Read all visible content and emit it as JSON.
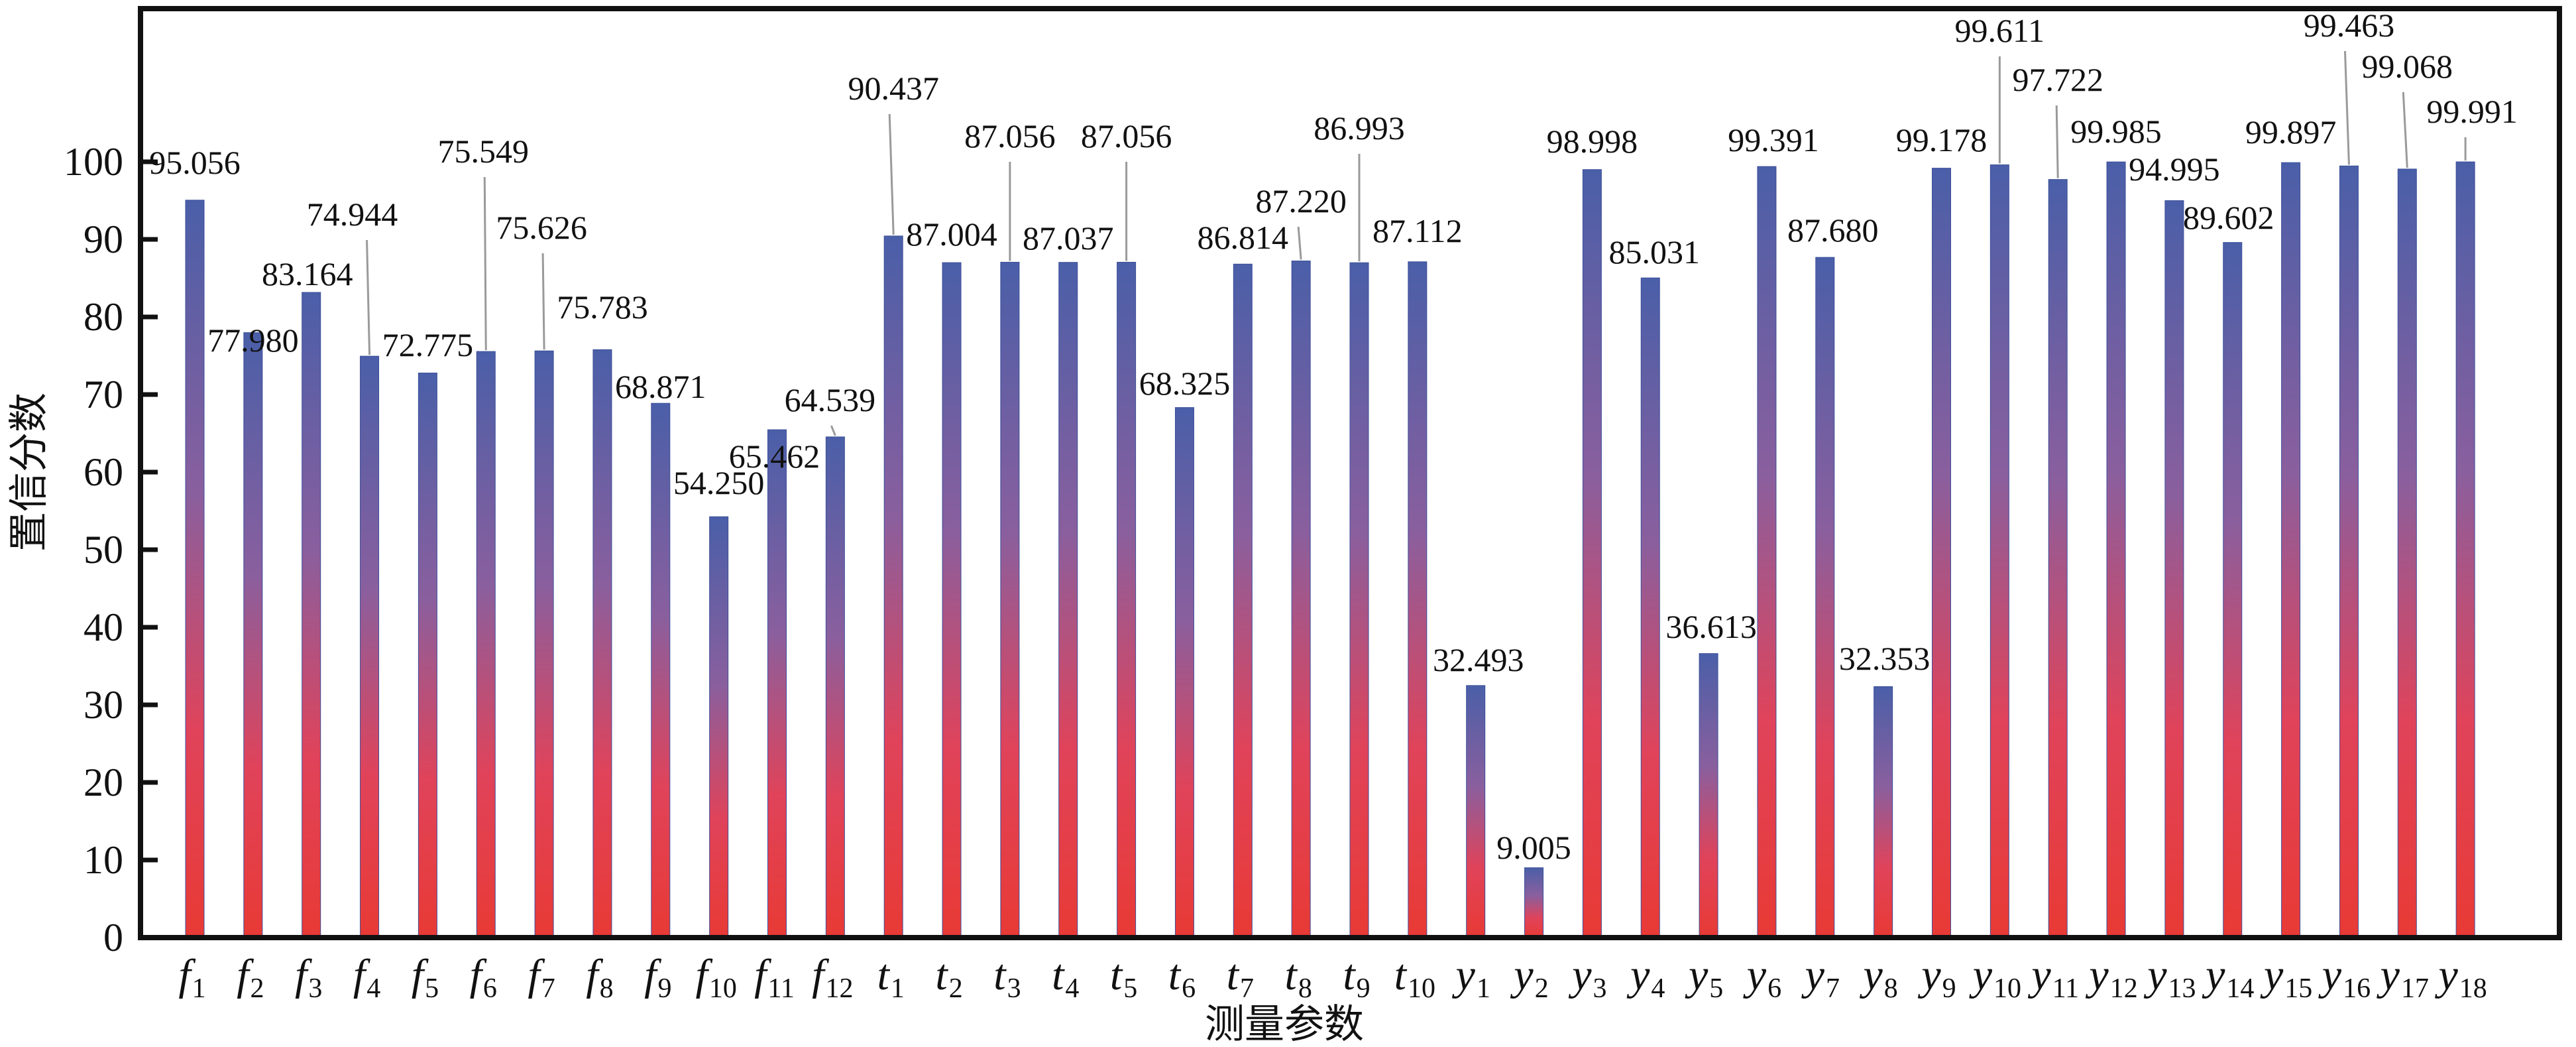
{
  "chart_data": {
    "type": "bar",
    "title": "",
    "xlabel": "测量参数",
    "ylabel": "置信分数",
    "ylim": [
      0,
      100
    ],
    "yticks": [
      0,
      10,
      20,
      30,
      40,
      50,
      60,
      70,
      80,
      90,
      100
    ],
    "grid": false,
    "legend": "none",
    "categories": [
      {
        "base": "f",
        "sub": "1"
      },
      {
        "base": "f",
        "sub": "2"
      },
      {
        "base": "f",
        "sub": "3"
      },
      {
        "base": "f",
        "sub": "4"
      },
      {
        "base": "f",
        "sub": "5"
      },
      {
        "base": "f",
        "sub": "6"
      },
      {
        "base": "f",
        "sub": "7"
      },
      {
        "base": "f",
        "sub": "8"
      },
      {
        "base": "f",
        "sub": "9"
      },
      {
        "base": "f",
        "sub": "10"
      },
      {
        "base": "f",
        "sub": "11"
      },
      {
        "base": "f",
        "sub": "12"
      },
      {
        "base": "t",
        "sub": "1"
      },
      {
        "base": "t",
        "sub": "2"
      },
      {
        "base": "t",
        "sub": "3"
      },
      {
        "base": "t",
        "sub": "4"
      },
      {
        "base": "t",
        "sub": "5"
      },
      {
        "base": "t",
        "sub": "6"
      },
      {
        "base": "t",
        "sub": "7"
      },
      {
        "base": "t",
        "sub": "8"
      },
      {
        "base": "t",
        "sub": "9"
      },
      {
        "base": "t",
        "sub": "10"
      },
      {
        "base": "y",
        "sub": "1"
      },
      {
        "base": "y",
        "sub": "2"
      },
      {
        "base": "y",
        "sub": "3"
      },
      {
        "base": "y",
        "sub": "4"
      },
      {
        "base": "y",
        "sub": "5"
      },
      {
        "base": "y",
        "sub": "6"
      },
      {
        "base": "y",
        "sub": "7"
      },
      {
        "base": "y",
        "sub": "8"
      },
      {
        "base": "y",
        "sub": "9"
      },
      {
        "base": "y",
        "sub": "10"
      },
      {
        "base": "y",
        "sub": "11"
      },
      {
        "base": "y",
        "sub": "12"
      },
      {
        "base": "y",
        "sub": "13"
      },
      {
        "base": "y",
        "sub": "14"
      },
      {
        "base": "y",
        "sub": "15"
      },
      {
        "base": "y",
        "sub": "16"
      },
      {
        "base": "y",
        "sub": "17"
      },
      {
        "base": "y",
        "sub": "18"
      }
    ],
    "values": [
      95.056,
      77.98,
      83.164,
      74.944,
      72.775,
      75.549,
      75.626,
      75.783,
      68.871,
      54.25,
      65.462,
      64.539,
      90.437,
      87.004,
      87.056,
      87.037,
      87.056,
      68.325,
      86.814,
      87.22,
      86.993,
      87.112,
      32.493,
      9.005,
      98.998,
      85.031,
      36.613,
      99.391,
      87.68,
      32.353,
      99.178,
      99.611,
      97.722,
      99.985,
      94.995,
      89.602,
      99.897,
      99.463,
      99.068,
      99.991
    ],
    "data_labels": [
      "95.056",
      "77.980",
      "83.164",
      "74.944",
      "72.775",
      "75.549",
      "75.626",
      "75.783",
      "68.871",
      "54.250",
      "65.462",
      "64.539",
      "90.437",
      "87.004",
      "87.056",
      "87.037",
      "87.056",
      "68.325",
      "86.814",
      "87.220",
      "86.993",
      "87.112",
      "32.493",
      "9.005",
      "98.998",
      "85.031",
      "36.613",
      "99.391",
      "87.680",
      "32.353",
      "99.178",
      "99.611",
      "97.722",
      "99.985",
      "94.995",
      "89.602",
      "99.897",
      "99.463",
      "99.068",
      "99.991"
    ],
    "bar_gradient": {
      "top": "#4a5fa8",
      "middle": "#8a5f9e",
      "bottom": "#e83a35"
    },
    "leader_line_color": "#9a9a9a"
  }
}
